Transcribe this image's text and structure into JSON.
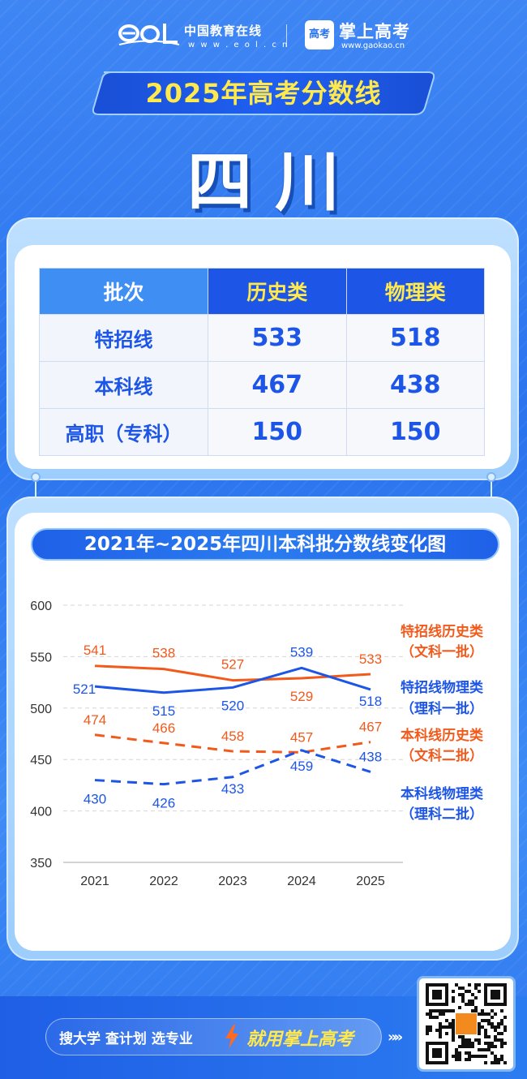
{
  "header": {
    "eol_cn": "中国教育在线",
    "eol_url": "w w w . e o l . c n",
    "gaokao_badge": "高考",
    "gaokao_name": "掌上高考",
    "gaokao_url": "www.gaokao.cn"
  },
  "title": "2025年高考分数线",
  "province": "四川",
  "table": {
    "headers": [
      "批次",
      "历史类",
      "物理类"
    ],
    "rows": [
      {
        "label": "特招线",
        "history": "533",
        "physics": "518"
      },
      {
        "label": "本科线",
        "history": "467",
        "physics": "438"
      },
      {
        "label": "高职（专科）",
        "history": "150",
        "physics": "150"
      }
    ]
  },
  "chart_data": {
    "type": "line",
    "title": "2021年~2025年四川本科批分数线变化图",
    "categories": [
      "2021",
      "2022",
      "2023",
      "2024",
      "2025"
    ],
    "ylim": [
      350,
      600
    ],
    "yticks": [
      350,
      400,
      450,
      500,
      550,
      600
    ],
    "grid": true,
    "legend_position": "right",
    "series": [
      {
        "name": "特招线历史类",
        "name_note": "（文科一批）",
        "values": [
          541,
          538,
          527,
          529,
          533
        ],
        "color": "#f25a1c",
        "dash": false,
        "label_pos": "above"
      },
      {
        "name": "特招线物理类",
        "name_note": "（理科一批）",
        "values": [
          521,
          515,
          520,
          539,
          518
        ],
        "color": "#1d56e6",
        "dash": false,
        "label_pos": "mixed"
      },
      {
        "name": "本科线历史类",
        "name_note": "（文科二批）",
        "values": [
          474,
          466,
          458,
          457,
          467
        ],
        "color": "#f25a1c",
        "dash": true,
        "label_pos": "above"
      },
      {
        "name": "本科线物理类",
        "name_note": "（理科二批）",
        "values": [
          430,
          426,
          433,
          459,
          438
        ],
        "color": "#1d56e6",
        "dash": true,
        "label_pos": "mixed"
      }
    ]
  },
  "footer": {
    "slogan_left": "搜大学  查计划  选专业",
    "slogan_right": "就用掌上高考",
    "qr_badge": "高考"
  },
  "colors": {
    "primary_blue": "#2a73ee",
    "deep_blue": "#1d56e6",
    "accent_yellow": "#ffe94d",
    "orange": "#f25a1c"
  }
}
